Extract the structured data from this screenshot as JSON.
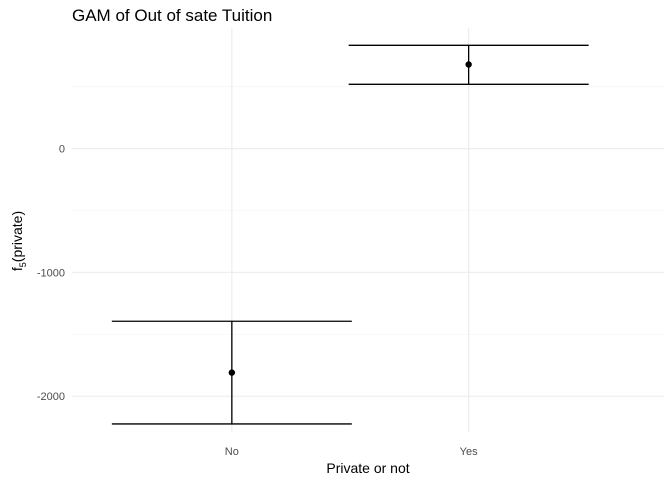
{
  "chart_data": {
    "type": "scatter",
    "title": "GAM of Out of sate Tuition",
    "xlabel": "Private or not",
    "ylabel_main": "f",
    "ylabel_sub": "5",
    "ylabel_rest": "(private)",
    "categories": [
      "No",
      "Yes"
    ],
    "series": [
      {
        "values": [
          -1810,
          680
        ],
        "lower": [
          -2225,
          520
        ],
        "upper": [
          -1395,
          835
        ]
      }
    ],
    "yticks": [
      0,
      -1000,
      -2000
    ],
    "ytick_labels": [
      "0",
      "-1000",
      "-2000"
    ],
    "ylim": [
      -2290,
      975
    ],
    "grid": true,
    "legend": "none"
  }
}
